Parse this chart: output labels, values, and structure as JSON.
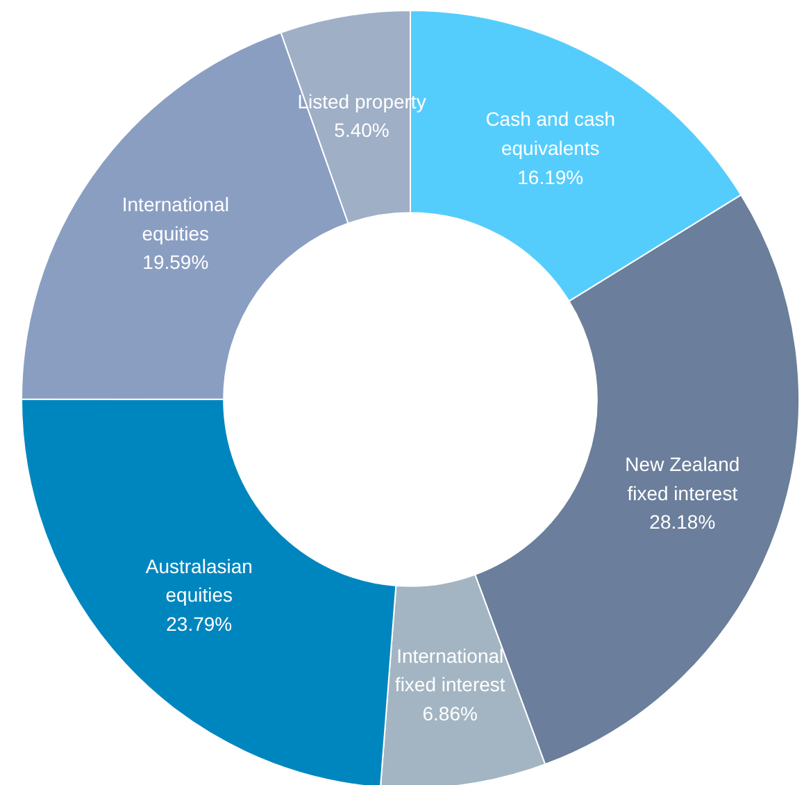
{
  "chart_data": {
    "type": "donut",
    "categories": [
      "Cash and cash\nequivalents",
      "New Zealand\nfixed interest",
      "International\nfixed interest",
      "Australasian\nequities",
      "International\nequities",
      "Listed property"
    ],
    "values": [
      16.19,
      28.18,
      6.86,
      23.79,
      19.59,
      5.4
    ],
    "value_labels": [
      "16.19%",
      "28.18%",
      "6.86%",
      "23.79%",
      "19.59%",
      "5.40%"
    ],
    "colors": [
      "#55cdfc",
      "#6b7e9b",
      "#a3b5c3",
      "#0086bf",
      "#8a9ec2",
      "#9eafc6"
    ]
  }
}
